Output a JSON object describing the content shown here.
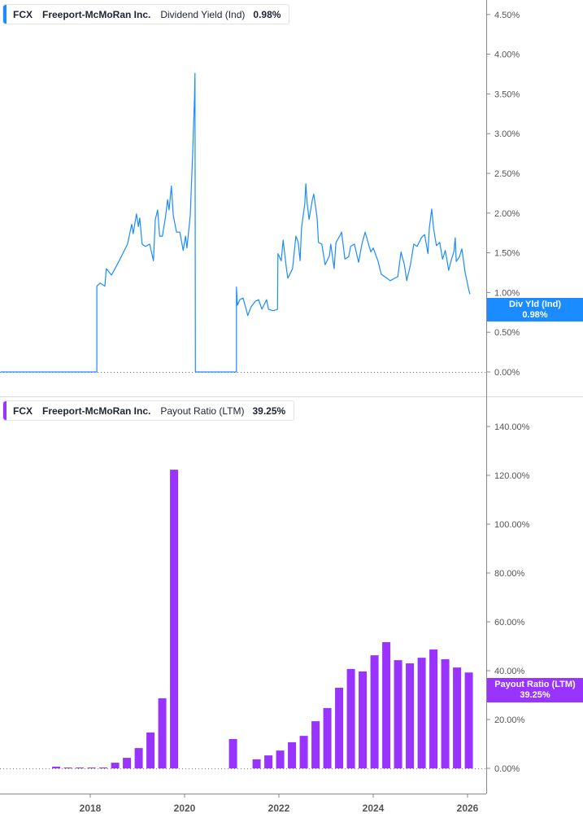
{
  "colors": {
    "yield_line": "#1a8cff",
    "payout_bars": "#9933ff",
    "axis": "#888888",
    "text": "#555555"
  },
  "top_legend": {
    "ticker": "FCX",
    "company": "Freeport-McMoRan Inc.",
    "metric": "Dividend Yield (Ind)",
    "value": "0.98%"
  },
  "bottom_legend": {
    "ticker": "FCX",
    "company": "Freeport-McMoRan Inc.",
    "metric": "Payout Ratio (LTM)",
    "value": "39.25%"
  },
  "top_tag": {
    "label": "Div Yld (Ind)",
    "value": "0.98%",
    "hidden_tick": "1.00%"
  },
  "bottom_tag": {
    "label": "Payout Ratio (LTM)",
    "value": "39.25%"
  },
  "chart_data": [
    {
      "type": "line",
      "series_name": "Dividend Yield (Ind)",
      "x_unit": "year",
      "xlim": [
        2016.1,
        2026.4
      ],
      "ylim": [
        0,
        4.6
      ],
      "y_ticks": [
        "0.00%",
        "0.50%",
        "1.00%",
        "1.50%",
        "2.00%",
        "2.50%",
        "3.00%",
        "3.50%",
        "4.00%",
        "4.50%"
      ],
      "y_tick_values": [
        0,
        0.5,
        1,
        1.5,
        2,
        2.5,
        3,
        3.5,
        4,
        4.5
      ],
      "axis_position": "right",
      "points": [
        [
          2016.1,
          0
        ],
        [
          2018.14,
          0
        ],
        [
          2018.14,
          1.08
        ],
        [
          2018.21,
          1.12
        ],
        [
          2018.31,
          1.08
        ],
        [
          2018.34,
          1.3
        ],
        [
          2018.45,
          1.22
        ],
        [
          2018.57,
          1.35
        ],
        [
          2018.69,
          1.49
        ],
        [
          2018.79,
          1.61
        ],
        [
          2018.88,
          1.86
        ],
        [
          2018.91,
          1.74
        ],
        [
          2018.98,
          1.99
        ],
        [
          2019.02,
          1.83
        ],
        [
          2019.05,
          1.94
        ],
        [
          2019.1,
          1.61
        ],
        [
          2019.17,
          1.58
        ],
        [
          2019.26,
          1.61
        ],
        [
          2019.34,
          1.4
        ],
        [
          2019.38,
          1.92
        ],
        [
          2019.43,
          2.04
        ],
        [
          2019.47,
          1.71
        ],
        [
          2019.53,
          1.71
        ],
        [
          2019.6,
          1.97
        ],
        [
          2019.64,
          2.17
        ],
        [
          2019.67,
          2.04
        ],
        [
          2019.72,
          2.34
        ],
        [
          2019.76,
          1.97
        ],
        [
          2019.83,
          1.76
        ],
        [
          2019.9,
          1.76
        ],
        [
          2019.97,
          1.53
        ],
        [
          2020.02,
          1.71
        ],
        [
          2020.05,
          1.56
        ],
        [
          2020.12,
          1.97
        ],
        [
          2020.17,
          2.74
        ],
        [
          2020.21,
          3.45
        ],
        [
          2020.22,
          3.76
        ],
        [
          2020.23,
          0
        ],
        [
          2021.1,
          0
        ],
        [
          2021.1,
          1.07
        ],
        [
          2021.12,
          0.84
        ],
        [
          2021.17,
          0.91
        ],
        [
          2021.24,
          0.93
        ],
        [
          2021.31,
          0.78
        ],
        [
          2021.34,
          0.71
        ],
        [
          2021.41,
          0.82
        ],
        [
          2021.5,
          0.89
        ],
        [
          2021.57,
          0.91
        ],
        [
          2021.64,
          0.79
        ],
        [
          2021.74,
          0.91
        ],
        [
          2021.78,
          0.79
        ],
        [
          2021.88,
          0.77
        ],
        [
          2021.97,
          0.79
        ],
        [
          2021.98,
          1.49
        ],
        [
          2022.05,
          1.4
        ],
        [
          2022.09,
          1.66
        ],
        [
          2022.16,
          1.3
        ],
        [
          2022.19,
          1.18
        ],
        [
          2022.29,
          1.3
        ],
        [
          2022.36,
          1.71
        ],
        [
          2022.41,
          1.63
        ],
        [
          2022.45,
          1.4
        ],
        [
          2022.48,
          1.81
        ],
        [
          2022.55,
          2.12
        ],
        [
          2022.57,
          2.37
        ],
        [
          2022.6,
          2.12
        ],
        [
          2022.64,
          1.92
        ],
        [
          2022.71,
          2.17
        ],
        [
          2022.74,
          2.24
        ],
        [
          2022.81,
          1.94
        ],
        [
          2022.84,
          1.63
        ],
        [
          2022.91,
          1.61
        ],
        [
          2022.98,
          1.35
        ],
        [
          2023.07,
          1.46
        ],
        [
          2023.1,
          1.61
        ],
        [
          2023.17,
          1.3
        ],
        [
          2023.21,
          1.63
        ],
        [
          2023.29,
          1.71
        ],
        [
          2023.33,
          1.76
        ],
        [
          2023.4,
          1.42
        ],
        [
          2023.48,
          1.45
        ],
        [
          2023.52,
          1.58
        ],
        [
          2023.6,
          1.61
        ],
        [
          2023.69,
          1.38
        ],
        [
          2023.76,
          1.61
        ],
        [
          2023.83,
          1.76
        ],
        [
          2023.9,
          1.61
        ],
        [
          2023.95,
          1.51
        ],
        [
          2024.0,
          1.56
        ],
        [
          2024.1,
          1.4
        ],
        [
          2024.17,
          1.23
        ],
        [
          2024.29,
          1.18
        ],
        [
          2024.36,
          1.15
        ],
        [
          2024.52,
          1.2
        ],
        [
          2024.59,
          1.51
        ],
        [
          2024.66,
          1.35
        ],
        [
          2024.71,
          1.15
        ],
        [
          2024.79,
          1.35
        ],
        [
          2024.86,
          1.61
        ],
        [
          2024.93,
          1.58
        ],
        [
          2025.02,
          1.69
        ],
        [
          2025.09,
          1.73
        ],
        [
          2025.16,
          1.49
        ],
        [
          2025.19,
          1.81
        ],
        [
          2025.24,
          2.05
        ],
        [
          2025.28,
          1.81
        ],
        [
          2025.34,
          1.59
        ],
        [
          2025.41,
          1.63
        ],
        [
          2025.47,
          1.42
        ],
        [
          2025.53,
          1.53
        ],
        [
          2025.6,
          1.28
        ],
        [
          2025.66,
          1.42
        ],
        [
          2025.71,
          1.51
        ],
        [
          2025.74,
          1.69
        ],
        [
          2025.76,
          1.39
        ],
        [
          2025.83,
          1.45
        ],
        [
          2025.88,
          1.55
        ],
        [
          2025.95,
          1.25
        ],
        [
          2026.02,
          1.05
        ],
        [
          2026.05,
          0.98
        ]
      ]
    },
    {
      "type": "bar",
      "series_name": "Payout Ratio (LTM)",
      "ylim": [
        0,
        150
      ],
      "y_ticks": [
        "0.00%",
        "20.00%",
        "40.00%",
        "60.00%",
        "80.00%",
        "100.00%",
        "120.00%",
        "140.00%"
      ],
      "y_tick_values": [
        0,
        20,
        40,
        60,
        80,
        100,
        120,
        140
      ],
      "axis_position": "right",
      "x_ticks": [
        "2018",
        "2020",
        "2022",
        "2024",
        "2026"
      ],
      "x_tick_values": [
        2018,
        2020,
        2022,
        2024,
        2026
      ],
      "bars": [
        [
          "2017-03",
          0.7
        ],
        [
          "2017-06",
          0.2
        ],
        [
          "2017-09",
          0.2
        ],
        [
          "2017-12",
          0.1
        ],
        [
          "2018-03",
          0.1
        ],
        [
          "2018-06",
          2.3
        ],
        [
          "2018-09",
          4.3
        ],
        [
          "2018-12",
          8.3
        ],
        [
          "2019-03",
          14.7
        ],
        [
          "2019-06",
          28.7
        ],
        [
          "2019-09",
          122.3
        ],
        [
          "2020-12",
          12.0
        ],
        [
          "2021-06",
          3.7
        ],
        [
          "2021-09",
          5.3
        ],
        [
          "2021-12",
          7.3
        ],
        [
          "2022-03",
          10.7
        ],
        [
          "2022-06",
          13.3
        ],
        [
          "2022-09",
          19.3
        ],
        [
          "2022-12",
          24.7
        ],
        [
          "2023-03",
          33.0
        ],
        [
          "2023-06",
          40.7
        ],
        [
          "2023-09",
          39.7
        ],
        [
          "2023-12",
          46.3
        ],
        [
          "2024-03",
          51.7
        ],
        [
          "2024-06",
          44.3
        ],
        [
          "2024-09",
          43.0
        ],
        [
          "2024-12",
          45.3
        ],
        [
          "2025-03",
          48.7
        ],
        [
          "2025-06",
          44.7
        ],
        [
          "2025-09",
          41.3
        ],
        [
          "2025-12",
          39.25
        ]
      ]
    }
  ]
}
